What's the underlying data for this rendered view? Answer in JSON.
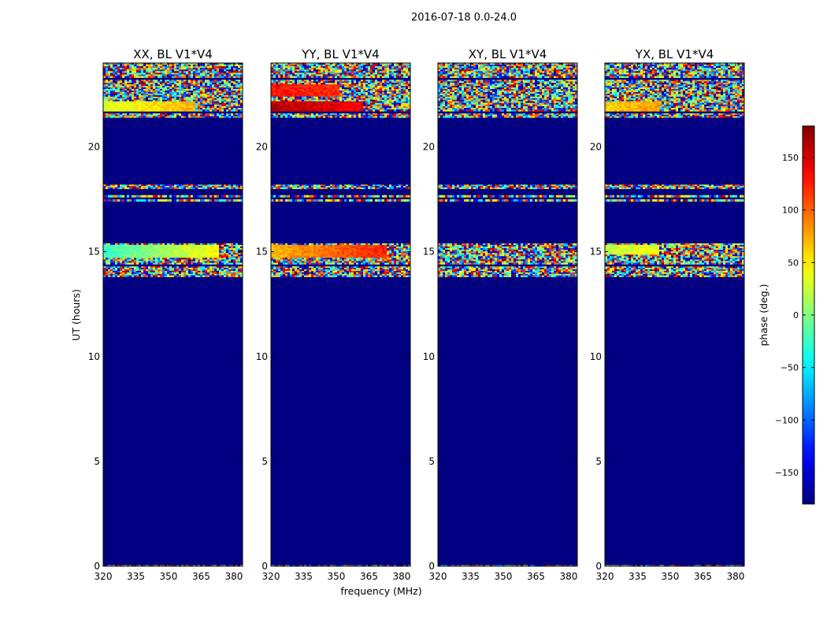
{
  "figure": {
    "suptitle": "2016-07-18 0.0-24.0"
  },
  "chart_data": {
    "type": "heatmap",
    "panels": [
      {
        "title": "XX, BL V1*V4",
        "pol": "XX"
      },
      {
        "title": "YY, BL V1*V4",
        "pol": "YY"
      },
      {
        "title": "XY, BL V1*V4",
        "pol": "XY"
      },
      {
        "title": "YX, BL V1*V4",
        "pol": "YX"
      }
    ],
    "xlabel": "frequency (MHz)",
    "ylabel": "UT (hours)",
    "xlim": [
      320,
      384
    ],
    "ylim": [
      0,
      24
    ],
    "xticks": [
      320,
      335,
      350,
      365,
      380
    ],
    "yticks": [
      0,
      5,
      10,
      15,
      20
    ],
    "background_value": -180,
    "colorbar": {
      "label": "phase (deg.)",
      "range": [
        -180,
        180
      ],
      "ticks": [
        150,
        100,
        50,
        0,
        -50,
        -100,
        -150
      ],
      "tick_labels": [
        "150",
        "100",
        "50",
        "0",
        "−50",
        "−100",
        "−150"
      ],
      "colormap": "jet"
    },
    "data_bands_hours": [
      [
        24.0,
        23.3
      ],
      [
        23.2,
        22.1
      ],
      [
        22.1,
        21.7
      ],
      [
        21.6,
        21.4
      ],
      [
        18.2,
        18.0
      ],
      [
        17.7,
        17.6
      ],
      [
        17.5,
        17.4
      ],
      [
        15.4,
        14.4
      ],
      [
        14.3,
        13.8
      ],
      [
        0.05,
        0.0
      ]
    ],
    "coherent_bands": {
      "XX": [
        {
          "range": [
            22.2,
            21.7
          ],
          "phase_start": 30,
          "phase_end": 75,
          "decoherence_freq": 362
        },
        {
          "range": [
            15.3,
            14.7
          ],
          "phase_start": -25,
          "phase_end": 45,
          "decoherence_freq": 373
        }
      ],
      "YY": [
        {
          "range": [
            22.2,
            21.7
          ],
          "phase_start": 160,
          "phase_end": 140,
          "decoherence_freq": 362
        },
        {
          "range": [
            23.0,
            22.4
          ],
          "phase_start": 130,
          "phase_end": 120,
          "decoherence_freq": 352
        },
        {
          "range": [
            15.3,
            14.7
          ],
          "phase_start": 70,
          "phase_end": 125,
          "decoherence_freq": 373
        }
      ],
      "XY": [],
      "YX": [
        {
          "range": [
            22.2,
            21.7
          ],
          "phase_start": 60,
          "phase_end": 80,
          "decoherence_freq": 345
        },
        {
          "range": [
            15.3,
            14.9
          ],
          "phase_start": 20,
          "phase_end": 40,
          "decoherence_freq": 345
        }
      ]
    }
  }
}
